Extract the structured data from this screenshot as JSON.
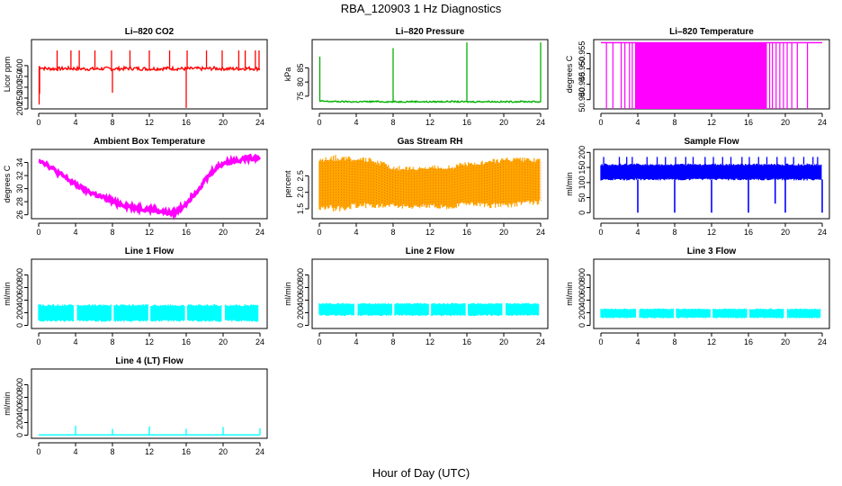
{
  "figure": {
    "title": "RBA_120903  1 Hz Diagnostics",
    "xlabel": "Hour of Day (UTC)"
  },
  "chart_data": [
    {
      "type": "line",
      "title": "Li–820 CO2",
      "ylabel": "Licor ppm",
      "xlim": [
        0,
        24
      ],
      "ylim": [
        200,
        520
      ],
      "xticks": [
        "0",
        "4",
        "8",
        "12",
        "16",
        "20",
        "24"
      ],
      "yticks": [
        "200",
        "250",
        "300",
        "350",
        "400"
      ],
      "color": "#ff0000",
      "series": [
        {
          "x": [
            0,
            0.5,
            1,
            2,
            3,
            4,
            5,
            6,
            7,
            8,
            9,
            10,
            11,
            12,
            13,
            14,
            15,
            16,
            17,
            18,
            19,
            20,
            21,
            22,
            23,
            24
          ],
          "values": [
            395,
            388,
            386,
            385,
            387,
            386,
            385,
            384,
            386,
            385,
            386,
            387,
            386,
            385,
            386,
            387,
            386,
            385,
            386,
            385,
            387,
            386,
            385,
            386,
            387,
            385
          ]
        }
      ],
      "spikes": [
        {
          "x": 0.05,
          "y": 220
        },
        {
          "x": 0.1,
          "y": 270
        },
        {
          "x": 2,
          "y": 470
        },
        {
          "x": 3.5,
          "y": 470
        },
        {
          "x": 4.4,
          "y": 470
        },
        {
          "x": 6.1,
          "y": 470
        },
        {
          "x": 7.9,
          "y": 470
        },
        {
          "x": 8,
          "y": 275
        },
        {
          "x": 9.9,
          "y": 470
        },
        {
          "x": 12,
          "y": 470
        },
        {
          "x": 14.2,
          "y": 470
        },
        {
          "x": 16,
          "y": 205
        },
        {
          "x": 16.1,
          "y": 470
        },
        {
          "x": 18.2,
          "y": 470
        },
        {
          "x": 19.9,
          "y": 470
        },
        {
          "x": 21.7,
          "y": 470
        },
        {
          "x": 22.4,
          "y": 470
        },
        {
          "x": 23.5,
          "y": 470
        },
        {
          "x": 23.9,
          "y": 470
        }
      ]
    },
    {
      "type": "line",
      "title": "Li–820 Pressure",
      "ylabel": "kPa",
      "xlim": [
        0,
        24
      ],
      "ylim": [
        70.5,
        95
      ],
      "xticks": [
        "0",
        "4",
        "8",
        "12",
        "16",
        "20",
        "24"
      ],
      "yticks": [
        "75",
        "80",
        "85"
      ],
      "color": "#00b000",
      "series": [
        {
          "x": [
            0,
            2,
            4,
            6,
            8,
            10,
            12,
            14,
            16,
            18,
            20,
            22,
            24
          ],
          "values": [
            73.2,
            73.1,
            73.0,
            73.1,
            73.0,
            73.1,
            73.0,
            73.1,
            73.0,
            73.1,
            73.0,
            73.1,
            73.0
          ]
        }
      ],
      "spikes": [
        {
          "x": 0.05,
          "y": 89
        },
        {
          "x": 8,
          "y": 92
        },
        {
          "x": 16,
          "y": 94
        },
        {
          "x": 24,
          "y": 94
        }
      ]
    },
    {
      "type": "line",
      "title": "Li–820 Temperature",
      "ylabel": "degrees C",
      "xlim": [
        0,
        24
      ],
      "ylim": [
        50.937,
        50.9595
      ],
      "xticks": [
        "0",
        "4",
        "8",
        "12",
        "16",
        "20",
        "24"
      ],
      "yticks": [
        "50.940",
        "50.945",
        "50.950",
        "50.955"
      ],
      "color": "#ff00ff",
      "series": [
        {
          "name": "upper",
          "x": [
            0,
            24
          ],
          "values": [
            50.9585,
            50.9585
          ]
        }
      ],
      "dense_band": [
        3.7,
        18.0
      ],
      "drops": [
        0.6,
        1.3,
        2.2,
        2.6,
        3.1,
        3.4,
        3.8,
        4.2,
        4.6,
        5.1,
        5.5,
        6.0,
        6.6,
        7.2,
        8.1,
        9.4,
        10.7,
        12.4,
        14.0,
        16.1,
        17.3,
        17.8,
        18.3,
        18.6,
        19.0,
        19.4,
        19.8,
        20.2,
        20.7,
        21.3,
        22.4
      ]
    },
    {
      "type": "line",
      "title": "Ambient Box Temperature",
      "ylabel": "degrees C",
      "xlim": [
        0,
        24
      ],
      "ylim": [
        25.4,
        36
      ],
      "xticks": [
        "0",
        "4",
        "8",
        "12",
        "16",
        "20",
        "24"
      ],
      "yticks": [
        "26",
        "28",
        "30",
        "32",
        "34"
      ],
      "color": "#ff00ff",
      "series": [
        {
          "x": [
            0,
            1,
            2,
            3,
            4,
            5,
            6,
            7,
            8,
            9,
            10,
            11,
            12,
            13,
            14,
            14.5,
            15,
            16,
            17,
            18,
            19,
            20,
            21,
            22,
            23,
            24
          ],
          "values": [
            34.5,
            33.6,
            32.5,
            31.6,
            30.6,
            29.8,
            29.2,
            28.6,
            28.0,
            27.6,
            27.2,
            27.0,
            26.8,
            26.6,
            26.3,
            26.2,
            26.5,
            27.8,
            29.4,
            31.2,
            32.9,
            33.9,
            34.2,
            34.5,
            34.7,
            34.8
          ]
        }
      ]
    },
    {
      "type": "line",
      "title": "Gas Stream RH",
      "ylabel": "percent",
      "xlim": [
        0,
        24
      ],
      "ylim": [
        1.2,
        3.3
      ],
      "xticks": [
        "0",
        "4",
        "8",
        "12",
        "16",
        "20",
        "24"
      ],
      "yticks": [
        "1.5",
        "2.0",
        "2.5"
      ],
      "color": "#ffa500",
      "upper": {
        "x": [
          0,
          2,
          4,
          6,
          8,
          10,
          12,
          14,
          16,
          18,
          20,
          22,
          24
        ],
        "values": [
          3.0,
          3.05,
          3.0,
          2.95,
          2.75,
          2.7,
          2.75,
          2.75,
          2.85,
          2.9,
          3.0,
          3.0,
          2.95
        ]
      },
      "lower": {
        "x": [
          0,
          2,
          4,
          6,
          8,
          10,
          12,
          14,
          16,
          18,
          20,
          22,
          24
        ],
        "values": [
          1.55,
          1.5,
          1.6,
          1.6,
          1.6,
          1.55,
          1.6,
          1.55,
          1.65,
          1.6,
          1.6,
          1.65,
          1.7
        ]
      }
    },
    {
      "type": "line",
      "title": "Sample Flow",
      "ylabel": "ml/min",
      "xlim": [
        0,
        24
      ],
      "ylim": [
        -20,
        210
      ],
      "xticks": [
        "0",
        "4",
        "8",
        "12",
        "16",
        "20",
        "24"
      ],
      "yticks": [
        "0",
        "50",
        "100",
        "150",
        "200"
      ],
      "color": "#0000ff",
      "upper": {
        "x": [
          0,
          24
        ],
        "values": [
          160,
          160
        ]
      },
      "lower": {
        "x": [
          0,
          24
        ],
        "values": [
          110,
          110
        ]
      },
      "spikes_up": [
        0.3,
        2.0,
        2.8,
        3.4,
        5.0,
        6.1,
        7.0,
        8.1,
        9.2,
        10.0,
        11.3,
        12.2,
        13.2,
        14.1,
        15.3,
        16.1,
        17.1,
        18.0,
        19.1,
        20.0,
        20.9,
        22.0,
        23.0,
        23.5
      ],
      "spikes_down": [
        {
          "x": 4,
          "y": 0
        },
        {
          "x": 8,
          "y": 0
        },
        {
          "x": 12,
          "y": 0
        },
        {
          "x": 16,
          "y": 0
        },
        {
          "x": 18.9,
          "y": 30
        },
        {
          "x": 20,
          "y": 0
        },
        {
          "x": 24,
          "y": 0
        }
      ]
    },
    {
      "type": "line",
      "title": "Line 1 Flow",
      "ylabel": "ml/min",
      "xlim": [
        0,
        24
      ],
      "ylim": [
        -50,
        1050
      ],
      "xticks": [
        "0",
        "4",
        "8",
        "12",
        "16",
        "20",
        "24"
      ],
      "yticks": [
        "0",
        "200",
        "400",
        "600",
        "800"
      ],
      "color": "#00ffff",
      "upper": {
        "x": [
          0,
          24
        ],
        "values": [
          320,
          320
        ]
      },
      "lower": {
        "x": [
          0,
          24
        ],
        "values": [
          70,
          70
        ]
      },
      "gaps": [
        4,
        8,
        12,
        16,
        20,
        24
      ]
    },
    {
      "type": "line",
      "title": "Line 2 Flow",
      "ylabel": "ml/min",
      "xlim": [
        0,
        24
      ],
      "ylim": [
        -50,
        1050
      ],
      "xticks": [
        "0",
        "4",
        "8",
        "12",
        "16",
        "20",
        "24"
      ],
      "yticks": [
        "0",
        "200",
        "400",
        "600",
        "800"
      ],
      "color": "#00ffff",
      "upper": {
        "x": [
          0,
          24
        ],
        "values": [
          345,
          345
        ]
      },
      "lower": {
        "x": [
          0,
          24
        ],
        "values": [
          160,
          160
        ]
      },
      "gaps": [
        4,
        8,
        12,
        16,
        20,
        24
      ]
    },
    {
      "type": "line",
      "title": "Line 3 Flow",
      "ylabel": "ml/min",
      "xlim": [
        0,
        24
      ],
      "ylim": [
        -50,
        1050
      ],
      "xticks": [
        "0",
        "4",
        "8",
        "12",
        "16",
        "20",
        "24"
      ],
      "yticks": [
        "0",
        "200",
        "400",
        "600",
        "800"
      ],
      "color": "#00ffff",
      "upper": {
        "x": [
          0,
          24
        ],
        "values": [
          260,
          260
        ]
      },
      "lower": {
        "x": [
          0,
          24
        ],
        "values": [
          120,
          120
        ]
      },
      "gaps": [
        4,
        8,
        12,
        16,
        20,
        24
      ]
    },
    {
      "type": "line",
      "title": "Line 4 (LT) Flow",
      "ylabel": "ml/min",
      "xlim": [
        0,
        24
      ],
      "ylim": [
        -50,
        1050
      ],
      "xticks": [
        "0",
        "4",
        "8",
        "12",
        "16",
        "20",
        "24"
      ],
      "yticks": [
        "0",
        "200",
        "400",
        "600",
        "800"
      ],
      "color": "#00ffff",
      "series": [
        {
          "x": [
            0,
            24
          ],
          "values": [
            5,
            5
          ]
        }
      ],
      "spikes": [
        {
          "x": 4,
          "y": 150
        },
        {
          "x": 8,
          "y": 100
        },
        {
          "x": 12,
          "y": 140
        },
        {
          "x": 16,
          "y": 100
        },
        {
          "x": 20,
          "y": 130
        },
        {
          "x": 24,
          "y": 110
        }
      ]
    }
  ]
}
